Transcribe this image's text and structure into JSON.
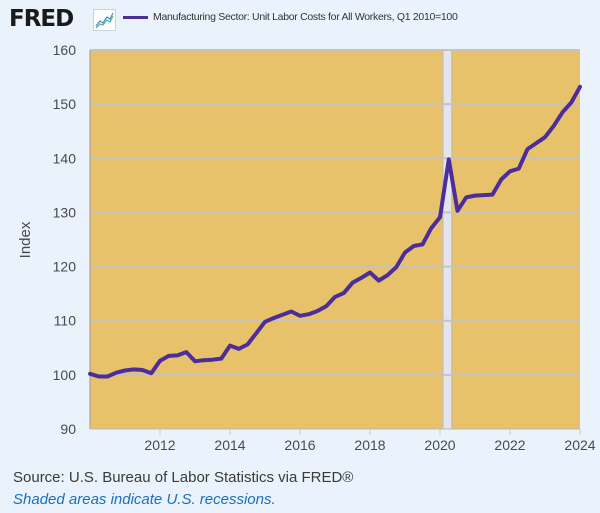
{
  "header": {
    "logo": "FRED",
    "logo_icon": "line-chart-icon",
    "legend_label": "Manufacturing Sector: Unit Labor Costs for All Workers, Q1 2010=100",
    "series_color": "#4b2e9a"
  },
  "footer": {
    "source": "Source: U.S. Bureau of Labor Statistics via FRED®",
    "note": "Shaded areas indicate U.S. recessions."
  },
  "colors": {
    "plot_background": "#e8c16b",
    "recession_shade": "#e4e4ee",
    "gridline": "#c8c3b8",
    "page_background": "#eaf2fb"
  },
  "chart_data": {
    "type": "line",
    "title": "Manufacturing Sector: Unit Labor Costs for All Workers, Q1 2010=100",
    "xlabel": "",
    "ylabel": "Index",
    "xlim": [
      2010.0,
      2024.0
    ],
    "ylim": [
      90,
      160
    ],
    "grid": true,
    "legend_position": "top-left",
    "x_ticks": [
      "2012",
      "2014",
      "2016",
      "2018",
      "2020",
      "2022",
      "2024"
    ],
    "y_ticks": [
      "90",
      "100",
      "110",
      "120",
      "130",
      "140",
      "150",
      "160"
    ],
    "recessions": [
      {
        "start": 2020.0,
        "end": 2020.25
      }
    ],
    "series": [
      {
        "name": "Manufacturing Sector: Unit Labor Costs for All Workers, Q1 2010=100",
        "start": "2010-Q1",
        "frequency": "quarterly",
        "values": [
          100.2,
          99.7,
          99.7,
          100.4,
          100.8,
          101.0,
          100.9,
          100.3,
          102.6,
          103.5,
          103.6,
          104.2,
          102.5,
          102.7,
          102.8,
          103.0,
          105.4,
          104.8,
          105.6,
          107.7,
          109.8,
          110.5,
          111.1,
          111.7,
          110.9,
          111.2,
          111.8,
          112.7,
          114.4,
          115.1,
          117.0,
          117.9,
          118.9,
          117.4,
          118.4,
          119.9,
          122.6,
          123.8,
          124.1,
          127.1,
          129.1,
          139.8,
          130.3,
          132.8,
          133.1,
          133.2,
          133.3,
          136.1,
          137.6,
          138.1,
          141.7,
          142.8,
          143.9,
          146.0,
          148.5,
          150.3,
          153.2
        ]
      }
    ]
  }
}
